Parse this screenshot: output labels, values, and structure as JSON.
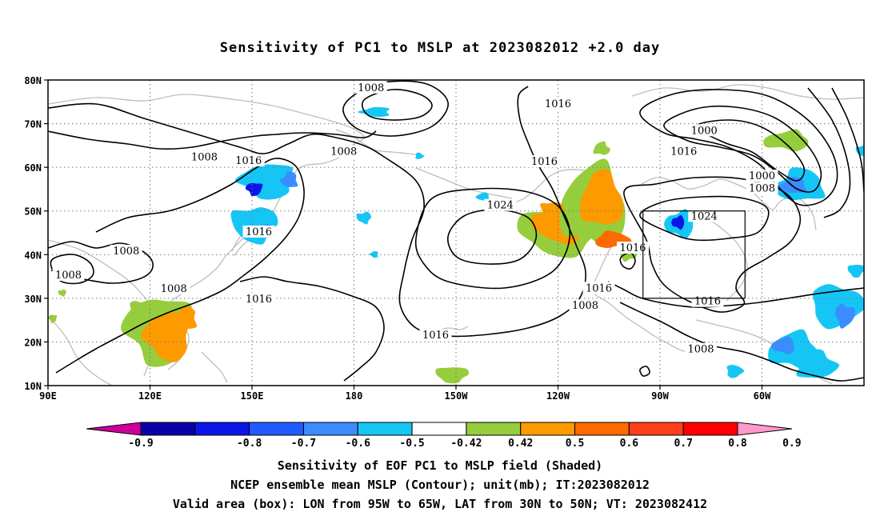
{
  "title": "Sensitivity of PC1 to MSLP at 2023082012 +2.0 day",
  "colors": {
    "land": "#bdbdbd",
    "contour": "#000000",
    "grid": "#7a7a7a",
    "box": "#000000"
  },
  "axes": {
    "lon_ticks": [
      "90E",
      "120E",
      "150E",
      "180",
      "150W",
      "120W",
      "90W",
      "60W"
    ],
    "lat_ticks": [
      "80N",
      "70N",
      "60N",
      "50N",
      "40N",
      "30N",
      "20N",
      "10N"
    ]
  },
  "contour_labels": [
    {
      "text": "1008",
      "lon": 185,
      "lat": 78.2
    },
    {
      "text": "1016",
      "lon": 240,
      "lat": 74.5
    },
    {
      "text": "1008",
      "lon": 136,
      "lat": 62.3
    },
    {
      "text": "1016",
      "lon": 149,
      "lat": 61.5
    },
    {
      "text": "1008",
      "lon": 177,
      "lat": 63.6
    },
    {
      "text": "1016",
      "lon": 236,
      "lat": 61.3
    },
    {
      "text": "1016",
      "lon": 277,
      "lat": 63.6
    },
    {
      "text": "1000",
      "lon": 283,
      "lat": 68.4
    },
    {
      "text": "1000",
      "lon": 300,
      "lat": 58.0
    },
    {
      "text": "1008",
      "lon": 300,
      "lat": 55.2
    },
    {
      "text": "1024",
      "lon": 223,
      "lat": 51.3
    },
    {
      "text": "1024",
      "lon": 283,
      "lat": 48.8
    },
    {
      "text": "1016",
      "lon": 152,
      "lat": 45.2
    },
    {
      "text": "1008",
      "lon": 113,
      "lat": 40.8
    },
    {
      "text": "1008",
      "lon": 96,
      "lat": 35.3
    },
    {
      "text": "1008",
      "lon": 127,
      "lat": 32.2
    },
    {
      "text": "1016",
      "lon": 152,
      "lat": 29.8
    },
    {
      "text": "1016",
      "lon": 262,
      "lat": 41.5
    },
    {
      "text": "1016",
      "lon": 252,
      "lat": 32.3
    },
    {
      "text": "1008",
      "lon": 248,
      "lat": 28.3
    },
    {
      "text": "1016",
      "lon": 284,
      "lat": 29.3
    },
    {
      "text": "1016",
      "lon": 204,
      "lat": 21.5
    },
    {
      "text": "1008",
      "lon": 282,
      "lat": 18.3
    }
  ],
  "valid_box": {
    "lon_min": 265,
    "lon_max": 295,
    "lat_min": 30,
    "lat_max": 50
  },
  "colorbar": {
    "labels": [
      "-0.9",
      "-0.8",
      "-0.7",
      "-0.6",
      "-0.5",
      "-0.42",
      "0.42",
      "0.5",
      "0.6",
      "0.7",
      "0.8",
      "0.9"
    ],
    "colors": [
      "#0a00a8",
      "#0a17e6",
      "#1f5bff",
      "#3b8cff",
      "#15c6f5",
      "#ffffff",
      "#96cd3c",
      "#fc9a00",
      "#fd6a00",
      "#fd3f1a",
      "#ff0000"
    ],
    "low_color": "#cc0099",
    "high_color": "#ff99cc"
  },
  "captions": [
    "Sensitivity of EOF PC1 to MSLP field (Shaded)",
    "NCEP ensemble mean MSLP (Contour); unit(mb); IT:2023082012",
    "Valid area (box): LON from 95W to 65W, LAT from 30N to 50N; VT: 2023082412"
  ]
}
